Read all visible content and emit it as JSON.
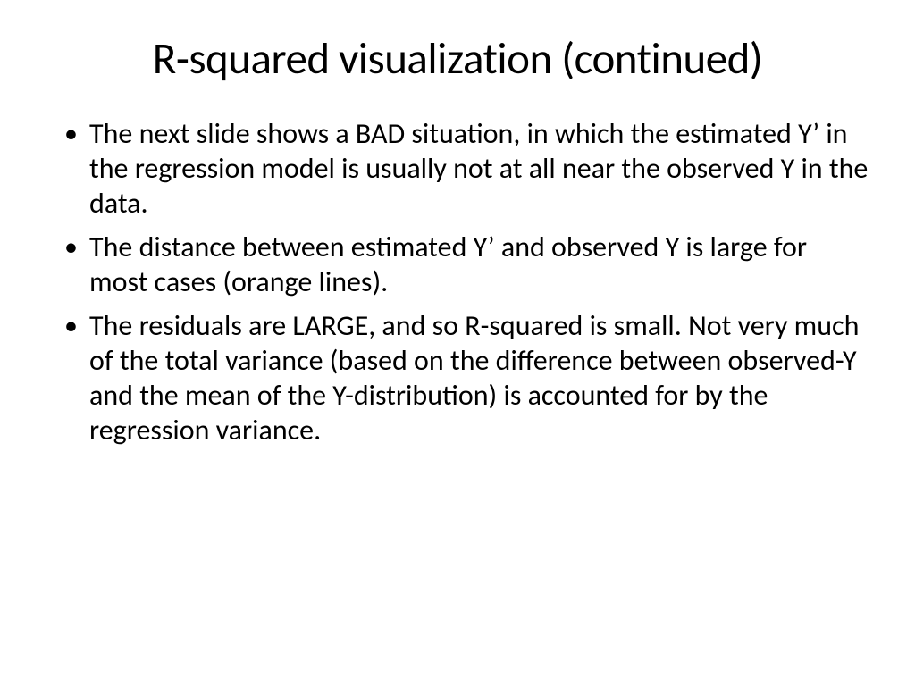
{
  "slide": {
    "title": "R-squared visualization (continued)",
    "bullets": [
      "The next slide shows a BAD situation, in which the estimated Y’ in the regression model is usually not at all near the observed Y in the data.",
      "The distance between estimated Y’ and observed Y is large for most cases (orange lines).",
      "The residuals are LARGE, and so R-squared is small. Not very much of the total variance (based on the difference between observed-Y and the mean of the Y-distribution) is accounted for by the regression variance."
    ]
  },
  "style": {
    "background_color": "#ffffff",
    "text_color": "#000000",
    "title_fontsize": 49,
    "body_fontsize": 32,
    "font_family": "Calibri"
  }
}
